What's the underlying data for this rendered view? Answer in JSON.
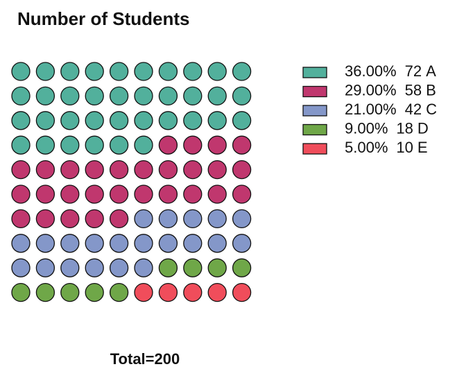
{
  "chart_data": {
    "type": "waffle",
    "title": "Number of Students",
    "categories": [
      "A",
      "B",
      "C",
      "D",
      "E"
    ],
    "values": [
      72,
      58,
      42,
      18,
      10
    ],
    "percents": [
      36,
      29,
      21,
      9,
      5
    ],
    "percent_labels": [
      "36.00%",
      "29.00%",
      "21.00%",
      "9.00%",
      "5.00%"
    ],
    "colors": [
      "#52b09c",
      "#c0376e",
      "#8497c9",
      "#6fa748",
      "#f04d5b"
    ],
    "footer": "Total=200"
  }
}
